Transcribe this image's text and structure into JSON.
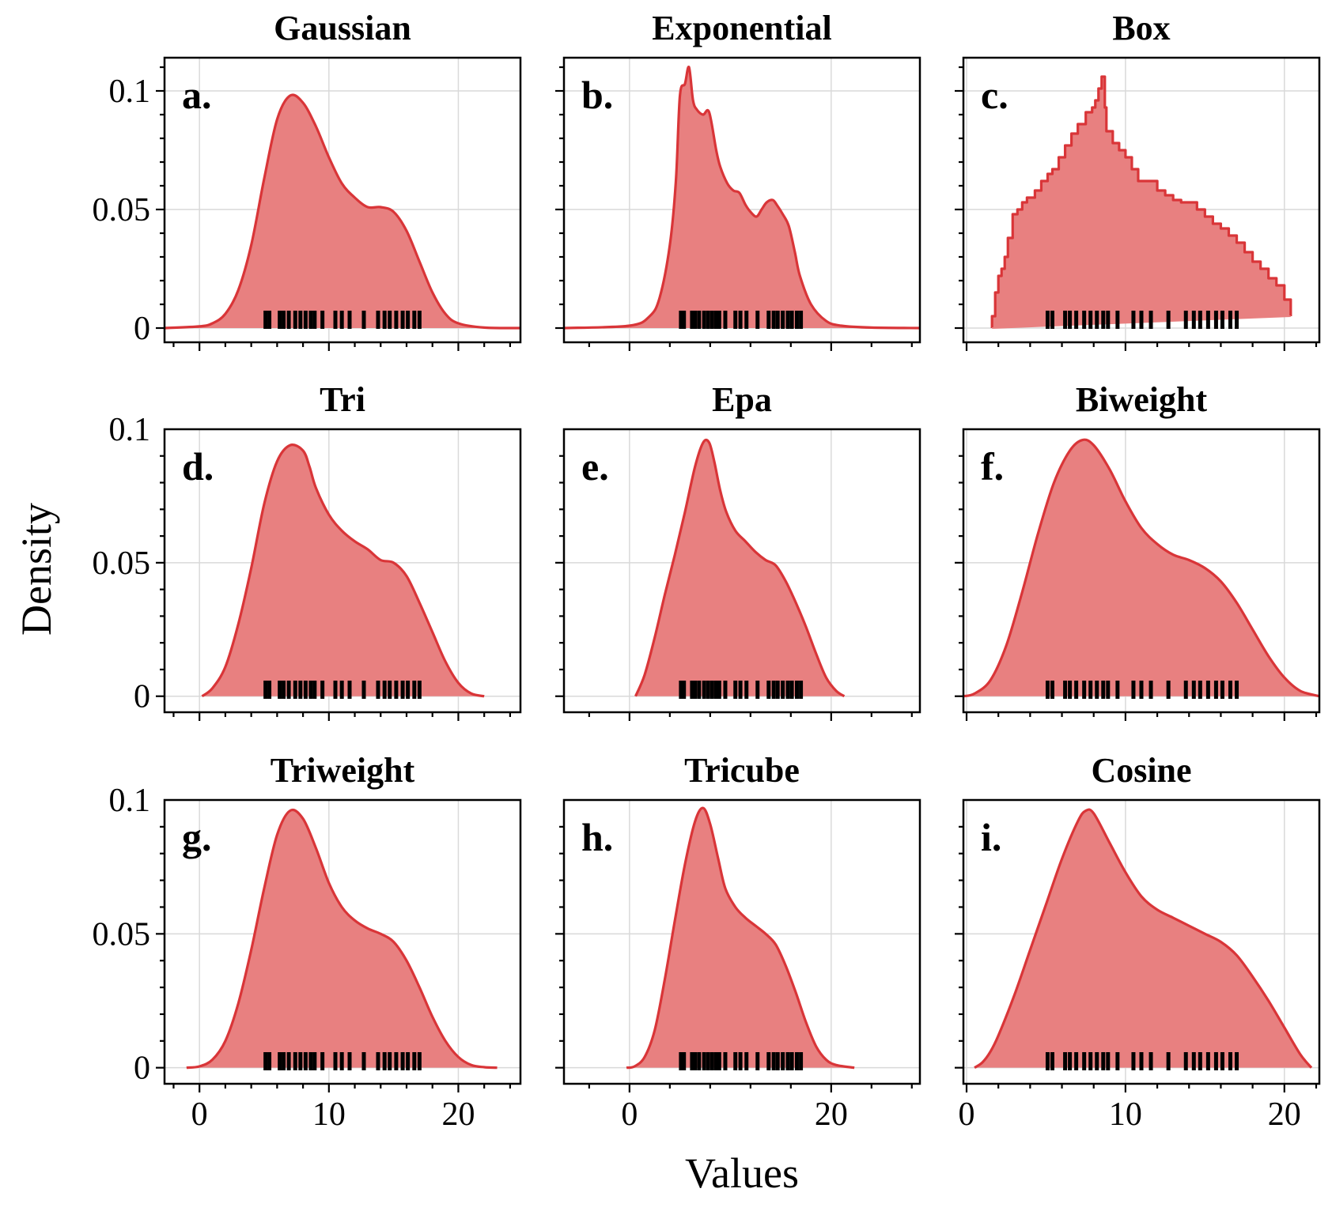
{
  "figure": {
    "xlabel": "Values",
    "ylabel": "Density",
    "colors": {
      "line": "#d93538",
      "fill": "#e88080",
      "rug": "#000000"
    }
  },
  "chart_data": [
    {
      "type": "area",
      "label": "a.",
      "title": "Gaussian",
      "xlim": [
        -2.7,
        24.8
      ],
      "ylim": [
        -0.006,
        0.114
      ],
      "xticks": [
        0,
        10,
        20
      ],
      "xticklabels": [
        "",
        "",
        ""
      ],
      "yticks": [
        0,
        0.05,
        0.1
      ],
      "yticklabels": [
        "0",
        "0.05",
        "0.1"
      ],
      "rug": [
        5.1,
        5.4,
        6.2,
        6.5,
        6.9,
        7.4,
        7.8,
        8.2,
        8.6,
        8.9,
        9.5,
        10.5,
        11.0,
        11.6,
        12.7,
        13.8,
        14.3,
        14.7,
        15.2,
        15.7,
        16.1,
        16.6,
        17.0
      ],
      "x": [
        -2.7,
        0,
        1,
        2,
        3,
        4,
        5,
        6,
        7,
        8,
        9,
        10,
        11,
        12,
        13,
        14,
        15,
        16,
        17,
        18,
        19,
        20,
        22,
        24.8
      ],
      "y": [
        0,
        0.0007,
        0.002,
        0.006,
        0.016,
        0.035,
        0.063,
        0.088,
        0.098,
        0.095,
        0.085,
        0.072,
        0.061,
        0.055,
        0.051,
        0.051,
        0.049,
        0.041,
        0.028,
        0.015,
        0.006,
        0.002,
        0.0002,
        0
      ]
    },
    {
      "type": "area",
      "label": "b.",
      "title": "Exponential",
      "xlim": [
        -6.5,
        28.8
      ],
      "ylim": [
        -0.006,
        0.114
      ],
      "xticks": [
        0,
        20
      ],
      "xticklabels": [
        "",
        ""
      ],
      "yticks": [
        0,
        0.05,
        0.1
      ],
      "yticklabels": [
        "",
        "",
        ""
      ],
      "rug": [
        5.1,
        5.4,
        6.2,
        6.5,
        6.9,
        7.4,
        7.8,
        8.2,
        8.6,
        8.9,
        9.5,
        10.5,
        11.0,
        11.6,
        12.7,
        13.8,
        14.3,
        14.7,
        15.2,
        15.7,
        16.1,
        16.6,
        17.0
      ],
      "x": [
        -6.5,
        0,
        2,
        3,
        4,
        4.6,
        5.0,
        5.5,
        5.9,
        6.3,
        6.7,
        7.3,
        7.9,
        8.6,
        9.0,
        9.7,
        10.3,
        10.9,
        11.5,
        12.0,
        12.6,
        13.1,
        13.6,
        14.2,
        14.6,
        15.2,
        15.8,
        16.4,
        16.9,
        18.0,
        19.5,
        21,
        24,
        28.8
      ],
      "y": [
        0,
        0.001,
        0.005,
        0.013,
        0.035,
        0.062,
        0.098,
        0.103,
        0.11,
        0.096,
        0.092,
        0.09,
        0.091,
        0.075,
        0.068,
        0.061,
        0.058,
        0.057,
        0.052,
        0.049,
        0.047,
        0.05,
        0.053,
        0.054,
        0.052,
        0.048,
        0.043,
        0.032,
        0.022,
        0.01,
        0.003,
        0.001,
        0.0002,
        0
      ]
    },
    {
      "type": "area",
      "label": "c.",
      "title": "Box",
      "xlim": [
        -0.2,
        22.2
      ],
      "ylim": [
        -0.006,
        0.114
      ],
      "xticks": [
        0,
        10,
        20
      ],
      "xticklabels": [
        "",
        "",
        ""
      ],
      "yticks": [
        0,
        0.05,
        0.1
      ],
      "yticklabels": [
        "",
        "",
        ""
      ],
      "rug": [
        5.1,
        5.4,
        6.2,
        6.5,
        6.9,
        7.4,
        7.8,
        8.2,
        8.6,
        8.9,
        9.5,
        10.5,
        11.0,
        11.6,
        12.7,
        13.8,
        14.3,
        14.7,
        15.2,
        15.7,
        16.1,
        16.6,
        17.0
      ],
      "baseline": [
        [
          1.6,
          0.0
        ],
        [
          20.4,
          0.005
        ]
      ],
      "x": [
        1.6,
        1.6,
        1.8,
        2.0,
        2.2,
        2.4,
        2.6,
        2.9,
        3.2,
        3.5,
        3.8,
        4.3,
        4.7,
        5.1,
        5.4,
        5.8,
        6.2,
        6.6,
        7.0,
        7.5,
        7.9,
        8.1,
        8.3,
        8.5,
        8.7,
        8.8,
        9.2,
        9.6,
        10.0,
        10.4,
        10.8,
        11.5,
        12.0,
        12.5,
        13.0,
        13.5,
        14.0,
        14.5,
        15.0,
        15.5,
        16.0,
        16.5,
        17.0,
        17.5,
        18.0,
        18.5,
        19.0,
        19.5,
        20.0,
        20.4
      ],
      "y": [
        0.0,
        0.005,
        0.015,
        0.022,
        0.025,
        0.03,
        0.038,
        0.048,
        0.05,
        0.053,
        0.055,
        0.058,
        0.062,
        0.065,
        0.067,
        0.072,
        0.077,
        0.082,
        0.086,
        0.091,
        0.093,
        0.096,
        0.101,
        0.106,
        0.093,
        0.083,
        0.078,
        0.075,
        0.072,
        0.067,
        0.062,
        0.062,
        0.058,
        0.056,
        0.054,
        0.053,
        0.053,
        0.05,
        0.047,
        0.044,
        0.042,
        0.039,
        0.036,
        0.032,
        0.028,
        0.025,
        0.021,
        0.018,
        0.012,
        0.005
      ]
    },
    {
      "type": "area",
      "label": "d.",
      "title": "Tri",
      "xlim": [
        -2.7,
        24.8
      ],
      "ylim": [
        -0.006,
        0.1
      ],
      "xticks": [
        0,
        10,
        20
      ],
      "xticklabels": [
        "",
        "",
        ""
      ],
      "yticks": [
        0,
        0.05,
        0.1
      ],
      "yticklabels": [
        "0",
        "0.05",
        "0.1"
      ],
      "rug": [
        5.1,
        5.4,
        6.2,
        6.5,
        6.9,
        7.4,
        7.8,
        8.2,
        8.6,
        8.9,
        9.5,
        10.5,
        11.0,
        11.6,
        12.7,
        13.8,
        14.3,
        14.7,
        15.2,
        15.7,
        16.1,
        16.6,
        17.0
      ],
      "x": [
        0.2,
        1,
        2,
        3,
        4,
        5,
        6,
        7,
        8,
        8.5,
        9,
        10,
        11,
        12,
        13,
        14,
        15,
        16,
        17,
        18,
        19,
        20,
        21,
        22
      ],
      "y": [
        0,
        0.003,
        0.011,
        0.027,
        0.048,
        0.072,
        0.088,
        0.094,
        0.092,
        0.086,
        0.078,
        0.068,
        0.062,
        0.058,
        0.055,
        0.051,
        0.05,
        0.045,
        0.035,
        0.024,
        0.013,
        0.005,
        0.001,
        0
      ]
    },
    {
      "type": "area",
      "label": "e.",
      "title": "Epa",
      "xlim": [
        -6.5,
        28.8
      ],
      "ylim": [
        -0.006,
        0.1
      ],
      "xticks": [
        0,
        20
      ],
      "xticklabels": [
        "",
        ""
      ],
      "yticks": [
        0,
        0.05,
        0.1
      ],
      "yticklabels": [
        "",
        "",
        ""
      ],
      "rug": [
        5.1,
        5.4,
        6.2,
        6.5,
        6.9,
        7.4,
        7.8,
        8.2,
        8.6,
        8.9,
        9.5,
        10.5,
        11.0,
        11.6,
        12.7,
        13.8,
        14.3,
        14.7,
        15.2,
        15.7,
        16.1,
        16.6,
        17.0
      ],
      "x": [
        0.6,
        1.5,
        2.5,
        3.5,
        4.5,
        5.5,
        6.5,
        7.3,
        7.9,
        8.4,
        9,
        9.6,
        10.5,
        11.5,
        12.5,
        13.5,
        14.5,
        15.5,
        16.5,
        17.5,
        18.5,
        19.5,
        20.5,
        21.3
      ],
      "y": [
        0,
        0.008,
        0.022,
        0.038,
        0.053,
        0.069,
        0.086,
        0.095,
        0.095,
        0.088,
        0.077,
        0.069,
        0.062,
        0.058,
        0.054,
        0.051,
        0.049,
        0.043,
        0.035,
        0.026,
        0.016,
        0.007,
        0.002,
        0
      ]
    },
    {
      "type": "area",
      "label": "f.",
      "title": "Biweight",
      "xlim": [
        -0.2,
        22.2
      ],
      "ylim": [
        -0.006,
        0.1
      ],
      "xticks": [
        0,
        10,
        20
      ],
      "xticklabels": [
        "",
        "",
        ""
      ],
      "yticks": [
        0,
        0.05,
        0.1
      ],
      "yticklabels": [
        "",
        "",
        ""
      ],
      "rug": [
        5.1,
        5.4,
        6.2,
        6.5,
        6.9,
        7.4,
        7.8,
        8.2,
        8.6,
        8.9,
        9.5,
        10.5,
        11.0,
        11.6,
        12.7,
        13.8,
        14.3,
        14.7,
        15.2,
        15.7,
        16.1,
        16.6,
        17.0
      ],
      "x": [
        -0.2,
        0.5,
        1.5,
        2.5,
        3.5,
        4.5,
        5.5,
        6.5,
        7.3,
        8.0,
        9.0,
        10.0,
        11.0,
        12.0,
        13.0,
        14.0,
        15.0,
        16.0,
        17.0,
        18.0,
        19.0,
        20.0,
        21.0,
        22.2
      ],
      "y": [
        0,
        0.001,
        0.006,
        0.019,
        0.039,
        0.061,
        0.08,
        0.092,
        0.096,
        0.094,
        0.085,
        0.073,
        0.063,
        0.057,
        0.053,
        0.051,
        0.048,
        0.043,
        0.035,
        0.025,
        0.015,
        0.007,
        0.002,
        0
      ]
    },
    {
      "type": "area",
      "label": "g.",
      "title": "Triweight",
      "xlim": [
        -2.7,
        24.8
      ],
      "ylim": [
        -0.006,
        0.1
      ],
      "xticks": [
        0,
        10,
        20
      ],
      "xticklabels": [
        "0",
        "10",
        "20"
      ],
      "yticks": [
        0,
        0.05,
        0.1
      ],
      "yticklabels": [
        "0",
        "0.05",
        "0.1"
      ],
      "rug": [
        5.1,
        5.4,
        6.2,
        6.5,
        6.9,
        7.4,
        7.8,
        8.2,
        8.6,
        8.9,
        9.5,
        10.5,
        11.0,
        11.6,
        12.7,
        13.8,
        14.3,
        14.7,
        15.2,
        15.7,
        16.1,
        16.6,
        17.0
      ],
      "x": [
        -1,
        0,
        1,
        2,
        3,
        4,
        5,
        6,
        7,
        8,
        9,
        10,
        11,
        12,
        13,
        14,
        15,
        16,
        17,
        18,
        19,
        20,
        21,
        22,
        23
      ],
      "y": [
        0,
        0.0005,
        0.003,
        0.01,
        0.024,
        0.044,
        0.067,
        0.087,
        0.096,
        0.093,
        0.082,
        0.069,
        0.06,
        0.055,
        0.052,
        0.05,
        0.047,
        0.04,
        0.03,
        0.019,
        0.01,
        0.004,
        0.001,
        0.0002,
        0
      ]
    },
    {
      "type": "area",
      "label": "h.",
      "title": "Tricube",
      "xlim": [
        -6.5,
        28.8
      ],
      "ylim": [
        -0.006,
        0.1
      ],
      "xticks": [
        0,
        20
      ],
      "xticklabels": [
        "0",
        "20"
      ],
      "yticks": [
        0,
        0.05,
        0.1
      ],
      "yticklabels": [
        "",
        "",
        ""
      ],
      "rug": [
        5.1,
        5.4,
        6.2,
        6.5,
        6.9,
        7.4,
        7.8,
        8.2,
        8.6,
        8.9,
        9.5,
        10.5,
        11.0,
        11.6,
        12.7,
        13.8,
        14.3,
        14.7,
        15.2,
        15.7,
        16.1,
        16.6,
        17.0
      ],
      "x": [
        -0.3,
        0.5,
        1.5,
        2.5,
        3.5,
        4.5,
        5.5,
        6.5,
        7.3,
        8.0,
        8.8,
        9.5,
        10.5,
        11.5,
        12.5,
        13.5,
        14.5,
        15.5,
        16.5,
        17.5,
        18.5,
        19.5,
        20.5,
        22.3
      ],
      "y": [
        0,
        0.0005,
        0.004,
        0.014,
        0.033,
        0.055,
        0.076,
        0.092,
        0.097,
        0.091,
        0.078,
        0.067,
        0.06,
        0.056,
        0.053,
        0.05,
        0.046,
        0.038,
        0.028,
        0.017,
        0.008,
        0.003,
        0.001,
        0
      ]
    },
    {
      "type": "area",
      "label": "i.",
      "title": "Cosine",
      "xlim": [
        -0.2,
        22.2
      ],
      "ylim": [
        -0.006,
        0.1
      ],
      "xticks": [
        0,
        10,
        20
      ],
      "xticklabels": [
        "0",
        "10",
        "20"
      ],
      "yticks": [
        0,
        0.05,
        0.1
      ],
      "yticklabels": [
        "",
        "",
        ""
      ],
      "rug": [
        5.1,
        5.4,
        6.2,
        6.5,
        6.9,
        7.4,
        7.8,
        8.2,
        8.6,
        8.9,
        9.5,
        10.5,
        11.0,
        11.6,
        12.7,
        13.8,
        14.3,
        14.7,
        15.2,
        15.7,
        16.1,
        16.6,
        17.0
      ],
      "x": [
        0.5,
        1.0,
        1.5,
        2.0,
        3.0,
        4.0,
        5.0,
        6.0,
        7.0,
        7.5,
        8.0,
        9.0,
        10.0,
        11.0,
        12.0,
        13.0,
        14.0,
        15.0,
        16.0,
        17.0,
        18.0,
        19.0,
        20.0,
        21.0,
        21.7
      ],
      "y": [
        0,
        0.002,
        0.006,
        0.012,
        0.027,
        0.044,
        0.061,
        0.078,
        0.092,
        0.096,
        0.095,
        0.084,
        0.073,
        0.064,
        0.059,
        0.056,
        0.053,
        0.05,
        0.047,
        0.042,
        0.034,
        0.025,
        0.015,
        0.005,
        0
      ]
    }
  ]
}
